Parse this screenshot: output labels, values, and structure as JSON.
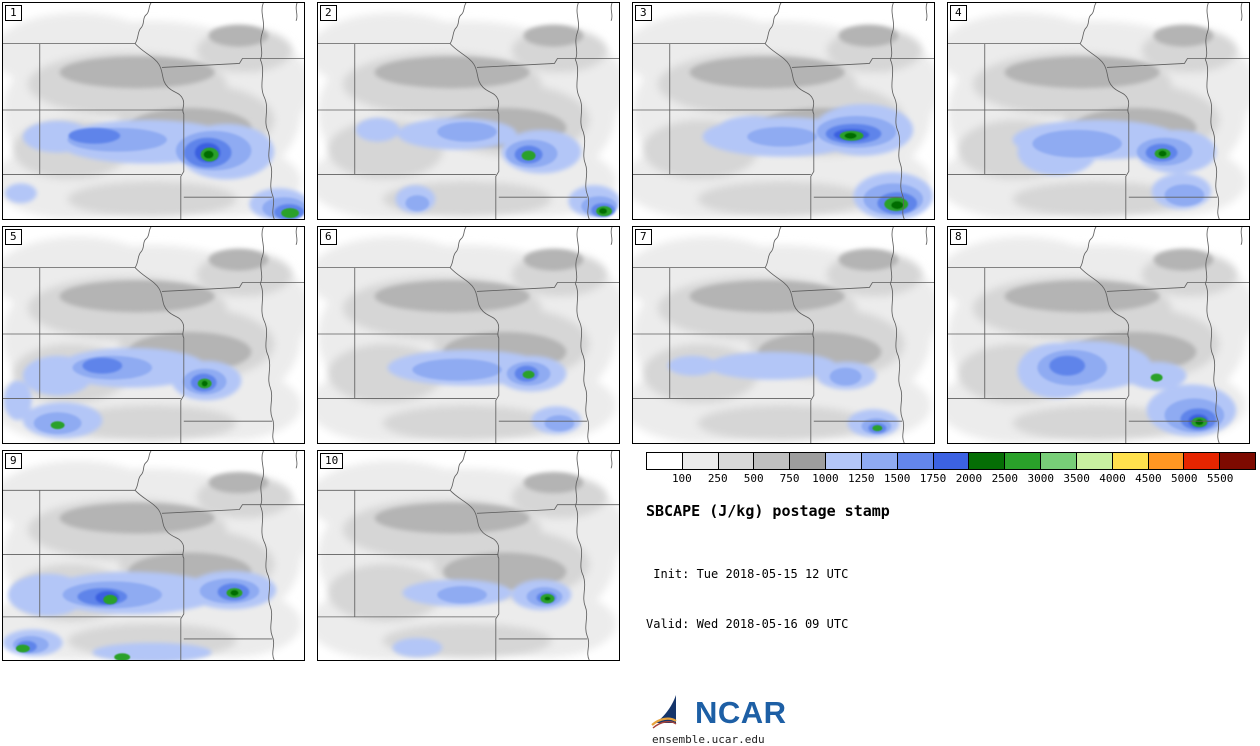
{
  "palette": {
    "G1": "#ececec",
    "G2": "#d6d6d6",
    "G3": "#b4b4b4",
    "B1": "#b3c6f7",
    "B2": "#8fabf2",
    "B3": "#5f84ea",
    "B4": "#3a60e0",
    "GR": "#2aa12a",
    "DG": "#066c06"
  },
  "legend": {
    "values": [
      "100",
      "250",
      "500",
      "750",
      "1000",
      "1250",
      "1500",
      "1750",
      "2000",
      "2500",
      "3000",
      "3500",
      "4000",
      "4500",
      "5000",
      "5500"
    ],
    "cell_colors": [
      "#ffffff",
      "#ebebeb",
      "#d8d8d8",
      "#bfbfbf",
      "#9e9e9e",
      "#b3c6f7",
      "#8fabf2",
      "#6386ec",
      "#3c62e2",
      "#056e05",
      "#2aa12a",
      "#78ce78",
      "#c8f0a0",
      "#ffe14d",
      "#ff9722",
      "#e62500",
      "#7d0a00"
    ],
    "title": "SBCAPE (J/kg) postage stamp",
    "init_line": " Init: Tue 2018-05-15 12 UTC",
    "valid_line": "Valid: Wed 2018-05-16 09 UTC",
    "logo_text": "NCAR",
    "website": "ensemble.ucar.edu"
  },
  "chart_data": {
    "type": "heatmap",
    "subtype": "ensemble-postage-stamp-filled-contour-maps",
    "title": "SBCAPE (J/kg) postage stamp",
    "variable": "SBCAPE",
    "units": "J/kg",
    "init": "Tue 2018-05-15 12 UTC",
    "valid": "Wed 2018-05-16 09 UTC",
    "region": "Central US (NE/KS/MO/IA/OK/AR)",
    "members": [
      1,
      2,
      3,
      4,
      5,
      6,
      7,
      8,
      9,
      10
    ],
    "legend_values": [
      100,
      250,
      500,
      750,
      1000,
      1250,
      1500,
      1750,
      2000,
      2500,
      3000,
      3500,
      4000,
      4500,
      5000,
      5500
    ],
    "base_blobs": [
      [
        "G1",
        150,
        110,
        150,
        92
      ],
      [
        "G1",
        75,
        50,
        85,
        40
      ],
      [
        "G1",
        235,
        85,
        75,
        55
      ],
      [
        "G1",
        70,
        180,
        80,
        38
      ],
      [
        "G1",
        230,
        180,
        70,
        35
      ],
      [
        "G2",
        125,
        82,
        100,
        32
      ],
      [
        "G2",
        195,
        118,
        78,
        36
      ],
      [
        "G2",
        68,
        148,
        58,
        30
      ],
      [
        "G2",
        243,
        48,
        48,
        22
      ],
      [
        "G2",
        150,
        198,
        85,
        18
      ],
      [
        "G3",
        135,
        70,
        78,
        16
      ],
      [
        "G3",
        188,
        126,
        62,
        20
      ],
      [
        "G3",
        237,
        33,
        30,
        11
      ]
    ],
    "panels": [
      {
        "member": 1,
        "blobs": [
          [
            "B1",
            145,
            140,
            90,
            22
          ],
          [
            "B1",
            55,
            135,
            35,
            16
          ],
          [
            "B1",
            225,
            150,
            48,
            28
          ],
          [
            "B1",
            278,
            203,
            30,
            16
          ],
          [
            "B1",
            18,
            192,
            16,
            10
          ],
          [
            "B2",
            115,
            138,
            50,
            12
          ],
          [
            "B2",
            212,
            149,
            38,
            20
          ],
          [
            "B2",
            283,
            207,
            22,
            11
          ],
          [
            "B3",
            92,
            134,
            26,
            8
          ],
          [
            "B3",
            206,
            151,
            24,
            15
          ],
          [
            "B3",
            288,
            211,
            15,
            8
          ],
          [
            "B4",
            206,
            151,
            13,
            10
          ],
          [
            "GR",
            208,
            153,
            9,
            7
          ],
          [
            "GR",
            289,
            212,
            9,
            5
          ],
          [
            "DG",
            207,
            153,
            5,
            4
          ]
        ]
      },
      {
        "member": 2,
        "blobs": [
          [
            "B1",
            140,
            132,
            60,
            16
          ],
          [
            "B1",
            225,
            150,
            40,
            22
          ],
          [
            "B1",
            98,
            198,
            20,
            14
          ],
          [
            "B1",
            278,
            200,
            26,
            16
          ],
          [
            "B1",
            60,
            128,
            22,
            12
          ],
          [
            "B2",
            150,
            130,
            30,
            10
          ],
          [
            "B2",
            215,
            152,
            26,
            14
          ],
          [
            "B2",
            283,
            205,
            18,
            10
          ],
          [
            "B2",
            100,
            202,
            12,
            8
          ],
          [
            "B3",
            212,
            153,
            14,
            9
          ],
          [
            "B3",
            287,
            209,
            12,
            7
          ],
          [
            "GR",
            212,
            154,
            7,
            5
          ],
          [
            "GR",
            288,
            210,
            8,
            5
          ],
          [
            "DG",
            287,
            210,
            4,
            3
          ]
        ]
      },
      {
        "member": 3,
        "blobs": [
          [
            "B1",
            150,
            135,
            80,
            20
          ],
          [
            "B1",
            232,
            128,
            50,
            26
          ],
          [
            "B1",
            262,
            195,
            40,
            24
          ],
          [
            "B1",
            120,
            128,
            35,
            14
          ],
          [
            "B2",
            225,
            130,
            40,
            16
          ],
          [
            "B2",
            150,
            135,
            35,
            10
          ],
          [
            "B2",
            262,
            198,
            30,
            16
          ],
          [
            "B3",
            222,
            132,
            28,
            10
          ],
          [
            "B3",
            266,
            202,
            20,
            11
          ],
          [
            "B4",
            220,
            133,
            18,
            6
          ],
          [
            "GR",
            220,
            134,
            12,
            5
          ],
          [
            "GR",
            265,
            203,
            12,
            7
          ],
          [
            "DG",
            219,
            134,
            6,
            3
          ],
          [
            "DG",
            266,
            204,
            6,
            4
          ]
        ]
      },
      {
        "member": 4,
        "blobs": [
          [
            "B1",
            150,
            138,
            85,
            20
          ],
          [
            "B1",
            110,
            150,
            40,
            24
          ],
          [
            "B1",
            230,
            150,
            40,
            22
          ],
          [
            "B1",
            235,
            190,
            30,
            18
          ],
          [
            "B2",
            130,
            142,
            45,
            14
          ],
          [
            "B2",
            218,
            150,
            28,
            14
          ],
          [
            "B2",
            238,
            194,
            20,
            11
          ],
          [
            "B3",
            215,
            151,
            16,
            9
          ],
          [
            "GR",
            216,
            152,
            8,
            5
          ],
          [
            "DG",
            216,
            152,
            4,
            3
          ]
        ]
      },
      {
        "member": 5,
        "blobs": [
          [
            "B1",
            130,
            142,
            75,
            20
          ],
          [
            "B1",
            55,
            150,
            35,
            20
          ],
          [
            "B1",
            205,
            155,
            35,
            20
          ],
          [
            "B1",
            60,
            195,
            40,
            18
          ],
          [
            "B1",
            15,
            175,
            14,
            20
          ],
          [
            "B2",
            110,
            142,
            40,
            12
          ],
          [
            "B2",
            203,
            156,
            22,
            13
          ],
          [
            "B2",
            55,
            198,
            24,
            11
          ],
          [
            "B3",
            100,
            140,
            20,
            8
          ],
          [
            "B3",
            202,
            157,
            13,
            9
          ],
          [
            "GR",
            203,
            158,
            7,
            5
          ],
          [
            "GR",
            55,
            200,
            7,
            4
          ],
          [
            "DG",
            203,
            158,
            3,
            3
          ]
        ]
      },
      {
        "member": 6,
        "blobs": [
          [
            "B1",
            150,
            142,
            80,
            18
          ],
          [
            "B1",
            215,
            148,
            35,
            18
          ],
          [
            "B1",
            240,
            195,
            25,
            14
          ],
          [
            "B2",
            140,
            144,
            45,
            11
          ],
          [
            "B2",
            212,
            148,
            22,
            12
          ],
          [
            "B2",
            243,
            198,
            15,
            8
          ],
          [
            "B3",
            210,
            148,
            12,
            8
          ],
          [
            "GR",
            212,
            149,
            6,
            4
          ]
        ]
      },
      {
        "member": 7,
        "blobs": [
          [
            "B1",
            140,
            140,
            65,
            14
          ],
          [
            "B1",
            215,
            150,
            30,
            14
          ],
          [
            "B1",
            242,
            198,
            26,
            14
          ],
          [
            "B1",
            60,
            140,
            25,
            10
          ],
          [
            "B2",
            214,
            151,
            16,
            9
          ],
          [
            "B2",
            245,
            201,
            15,
            8
          ],
          [
            "B3",
            246,
            203,
            9,
            5
          ],
          [
            "GR",
            246,
            203,
            5,
            3
          ]
        ]
      },
      {
        "member": 8,
        "blobs": [
          [
            "B1",
            140,
            140,
            65,
            25
          ],
          [
            "B1",
            110,
            145,
            40,
            28
          ],
          [
            "B1",
            245,
            185,
            45,
            26
          ],
          [
            "B1",
            210,
            150,
            30,
            14
          ],
          [
            "B2",
            125,
            142,
            35,
            18
          ],
          [
            "B2",
            248,
            190,
            30,
            17
          ],
          [
            "B3",
            120,
            140,
            18,
            10
          ],
          [
            "B3",
            252,
            194,
            18,
            11
          ],
          [
            "B4",
            252,
            196,
            10,
            7
          ],
          [
            "GR",
            253,
            197,
            8,
            5
          ],
          [
            "GR",
            210,
            152,
            6,
            4
          ],
          [
            "DG",
            253,
            197,
            4,
            3
          ]
        ]
      },
      {
        "member": 9,
        "blobs": [
          [
            "B1",
            130,
            148,
            90,
            22
          ],
          [
            "B1",
            45,
            150,
            40,
            22
          ],
          [
            "B1",
            230,
            145,
            45,
            20
          ],
          [
            "B1",
            30,
            200,
            30,
            14
          ],
          [
            "B1",
            150,
            210,
            60,
            10
          ],
          [
            "B2",
            110,
            150,
            50,
            14
          ],
          [
            "B2",
            228,
            146,
            30,
            13
          ],
          [
            "B2",
            28,
            202,
            18,
            9
          ],
          [
            "B3",
            100,
            152,
            25,
            9
          ],
          [
            "B3",
            232,
            147,
            16,
            9
          ],
          [
            "B3",
            24,
            204,
            10,
            6
          ],
          [
            "B4",
            105,
            153,
            12,
            7
          ],
          [
            "GR",
            108,
            155,
            7,
            5
          ],
          [
            "GR",
            233,
            148,
            8,
            5
          ],
          [
            "GR",
            20,
            206,
            7,
            4
          ],
          [
            "GR",
            120,
            215,
            8,
            4
          ],
          [
            "DG",
            233,
            148,
            4,
            3
          ]
        ]
      },
      {
        "member": 10,
        "blobs": [
          [
            "B1",
            140,
            148,
            55,
            14
          ],
          [
            "B1",
            225,
            150,
            30,
            16
          ],
          [
            "B1",
            100,
            205,
            25,
            10
          ],
          [
            "B2",
            145,
            150,
            25,
            9
          ],
          [
            "B2",
            228,
            152,
            18,
            10
          ],
          [
            "B3",
            230,
            153,
            10,
            6
          ],
          [
            "GR",
            231,
            154,
            7,
            5
          ],
          [
            "DG",
            231,
            154,
            3,
            2
          ]
        ]
      }
    ]
  }
}
